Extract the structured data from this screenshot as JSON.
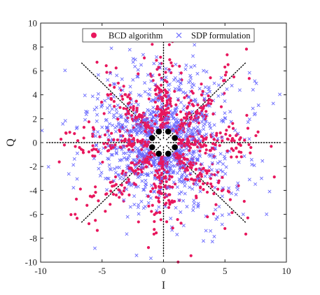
{
  "chart_data": {
    "type": "scatter",
    "xlabel": "I",
    "ylabel": "Q",
    "xlim": [
      -10,
      10
    ],
    "ylim": [
      -10,
      10
    ],
    "xticks": [
      -10,
      -5,
      0,
      5,
      10
    ],
    "yticks": [
      -10,
      -8,
      -6,
      -4,
      -2,
      0,
      2,
      4,
      6,
      8,
      10
    ],
    "xtick_labels": [
      "-10",
      "-5",
      "0",
      "5",
      "10"
    ],
    "ytick_labels": [
      "-10",
      "-8",
      "-6",
      "-4",
      "-2",
      "0",
      "2",
      "4",
      "6",
      "8",
      "10"
    ],
    "grid": false,
    "legend_position": "top-center",
    "series": [
      {
        "name": "BCD algorithm",
        "marker": "circle",
        "color": "#e8175d"
      },
      {
        "name": "SDP formulation",
        "marker": "x",
        "color": "#6b6bff"
      }
    ],
    "constellation": {
      "marker": "filled-circle",
      "color": "#000000",
      "points": [
        [
          0.3827,
          0.9239
        ],
        [
          -0.3827,
          0.9239
        ],
        [
          0.9239,
          0.3827
        ],
        [
          -0.9239,
          0.3827
        ],
        [
          0.9239,
          -0.3827
        ],
        [
          -0.9239,
          -0.3827
        ],
        [
          0.3827,
          -0.9239
        ],
        [
          -0.3827,
          -0.9239
        ]
      ]
    },
    "decision_boundaries": {
      "style": "dotted",
      "color": "#000000",
      "angles_deg": [
        0,
        45,
        90,
        135,
        180,
        225,
        270,
        315
      ],
      "radius": 9.5
    },
    "symbol_sectors_deg": [
      22.5,
      67.5,
      112.5,
      157.5,
      202.5,
      247.5,
      292.5,
      337.5
    ]
  }
}
